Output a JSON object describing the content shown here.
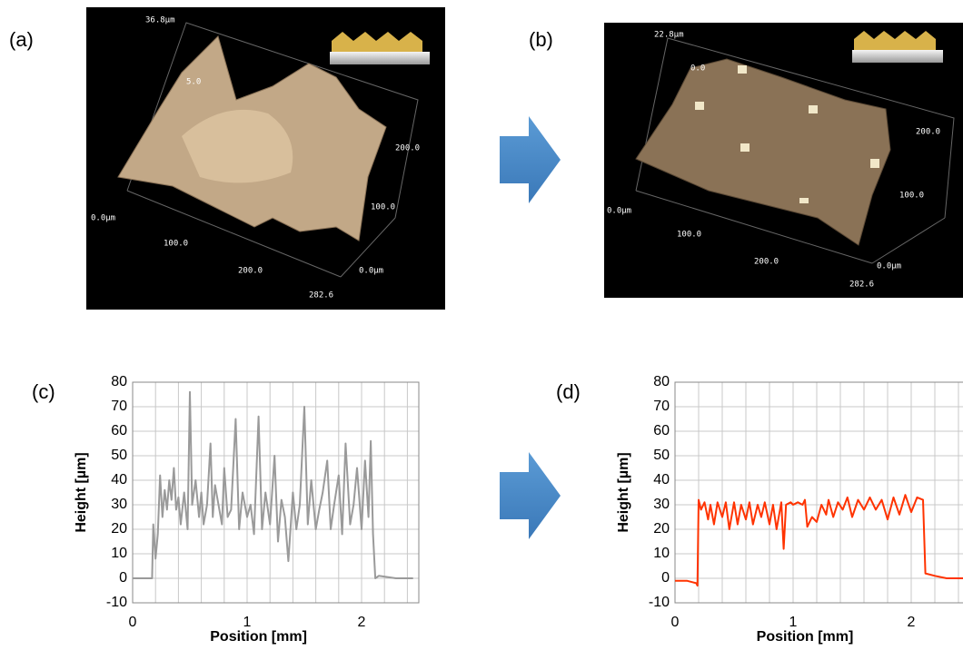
{
  "panels": [
    {
      "label": "(a)",
      "image_labels": [
        "36.8µm",
        "5.0",
        "200.0",
        "100.0",
        "0.0µm",
        "100.0",
        "200.0",
        "0.0µm",
        "282.6"
      ]
    },
    {
      "label": "(b)",
      "image_labels": [
        "22.8µm",
        "0.0",
        "200.0",
        "100.0",
        "0.0µm",
        "100.0",
        "200.0",
        "0.0µm",
        "282.6"
      ]
    }
  ],
  "chart_data": [
    {
      "type": "line",
      "label": "(c)",
      "xlabel": "Position [mm]",
      "ylabel": "Height [µm]",
      "color": "#9a9a9a",
      "x": [
        0,
        0.1,
        0.17,
        0.18,
        0.2,
        0.22,
        0.24,
        0.26,
        0.28,
        0.3,
        0.32,
        0.34,
        0.36,
        0.38,
        0.4,
        0.42,
        0.45,
        0.48,
        0.5,
        0.52,
        0.55,
        0.58,
        0.6,
        0.62,
        0.65,
        0.68,
        0.7,
        0.72,
        0.75,
        0.78,
        0.8,
        0.83,
        0.86,
        0.9,
        0.93,
        0.96,
        1.0,
        1.03,
        1.06,
        1.1,
        1.13,
        1.16,
        1.2,
        1.24,
        1.27,
        1.3,
        1.33,
        1.36,
        1.4,
        1.43,
        1.46,
        1.5,
        1.53,
        1.56,
        1.6,
        1.63,
        1.66,
        1.7,
        1.73,
        1.76,
        1.8,
        1.83,
        1.86,
        1.9,
        1.93,
        1.96,
        2.0,
        2.03,
        2.06,
        2.08,
        2.1,
        2.12,
        2.15,
        2.3,
        2.45
      ],
      "values": [
        0,
        0,
        0,
        22,
        8,
        18,
        42,
        25,
        36,
        28,
        40,
        32,
        45,
        28,
        33,
        22,
        35,
        20,
        76,
        30,
        40,
        25,
        35,
        22,
        30,
        55,
        25,
        38,
        30,
        22,
        45,
        25,
        28,
        65,
        20,
        35,
        25,
        30,
        18,
        66,
        20,
        35,
        22,
        50,
        15,
        32,
        25,
        7,
        35,
        20,
        30,
        70,
        22,
        40,
        20,
        28,
        35,
        48,
        20,
        30,
        42,
        18,
        55,
        22,
        30,
        45,
        20,
        48,
        25,
        56,
        18,
        0,
        1,
        0,
        0
      ],
      "xlim": [
        0,
        2.5
      ],
      "xticks": [
        0,
        1,
        2
      ],
      "xgrid": [
        0,
        0.2,
        0.4,
        0.6,
        0.8,
        1,
        1.2,
        1.4,
        1.6,
        1.8,
        2,
        2.2,
        2.4
      ],
      "ylim": [
        -10,
        80
      ],
      "yticks": [
        -10,
        0,
        10,
        20,
        30,
        40,
        50,
        60,
        70,
        80
      ],
      "grid": true
    },
    {
      "type": "line",
      "label": "(d)",
      "xlabel": "Position [mm]",
      "ylabel": "Height [µm]",
      "color": "#ff3300",
      "x": [
        0,
        0.1,
        0.18,
        0.19,
        0.2,
        0.22,
        0.25,
        0.28,
        0.3,
        0.33,
        0.36,
        0.4,
        0.43,
        0.46,
        0.5,
        0.53,
        0.56,
        0.6,
        0.63,
        0.66,
        0.7,
        0.73,
        0.76,
        0.8,
        0.83,
        0.86,
        0.9,
        0.92,
        0.94,
        0.98,
        1.0,
        1.04,
        1.08,
        1.1,
        1.12,
        1.16,
        1.2,
        1.24,
        1.28,
        1.3,
        1.34,
        1.38,
        1.42,
        1.46,
        1.5,
        1.55,
        1.6,
        1.65,
        1.7,
        1.75,
        1.8,
        1.85,
        1.9,
        1.95,
        2.0,
        2.05,
        2.1,
        2.12,
        2.2,
        2.3,
        2.5
      ],
      "values": [
        -1,
        -1,
        -2,
        -3,
        32,
        28,
        31,
        24,
        30,
        22,
        31,
        25,
        31,
        20,
        31,
        22,
        30,
        24,
        31,
        22,
        30,
        25,
        31,
        22,
        30,
        20,
        31,
        12,
        30,
        31,
        30,
        31,
        30,
        32,
        21,
        25,
        23,
        30,
        26,
        32,
        25,
        31,
        28,
        33,
        25,
        32,
        28,
        33,
        28,
        32,
        24,
        33,
        26,
        34,
        27,
        33,
        32,
        2,
        1,
        0,
        0
      ],
      "xlim": [
        0,
        2.5
      ],
      "xticks": [
        0,
        1,
        2
      ],
      "xgrid": [
        0,
        0.2,
        0.4,
        0.6,
        0.8,
        1,
        1.2,
        1.4,
        1.6,
        1.8,
        2,
        2.2,
        2.4
      ],
      "ylim": [
        -10,
        80
      ],
      "yticks": [
        -10,
        0,
        10,
        20,
        30,
        40,
        50,
        60,
        70,
        80
      ],
      "grid": true
    }
  ]
}
